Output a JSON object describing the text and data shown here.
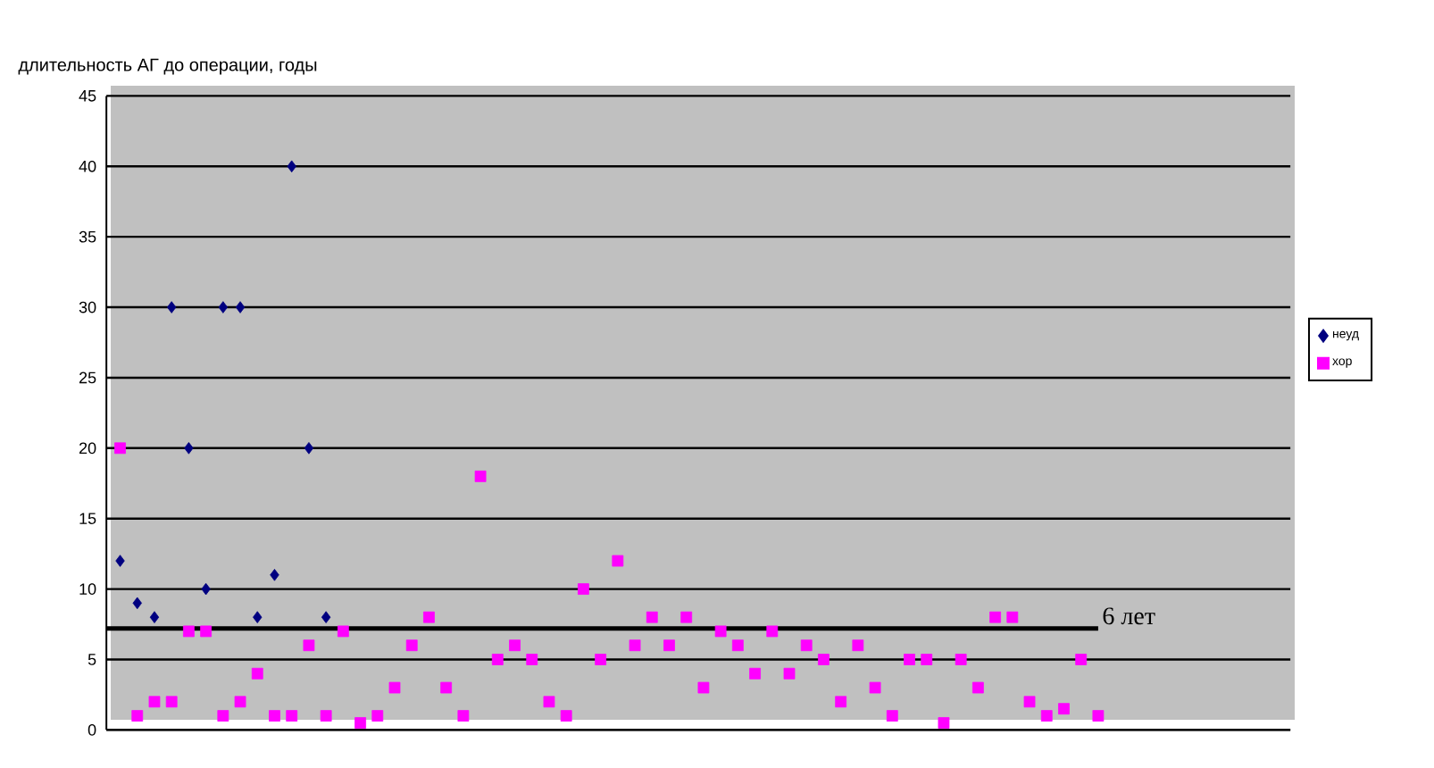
{
  "chart_data": {
    "type": "scatter",
    "ylabel": "длительность АГ до операции, годы",
    "categories": [
      null,
      null,
      null,
      null,
      null,
      null,
      null,
      null,
      null,
      null,
      null,
      null,
      null,
      null,
      null,
      null,
      null,
      null,
      null,
      null,
      null,
      null,
      null,
      null,
      null,
      null,
      null,
      null,
      null,
      null,
      null,
      null,
      null,
      null,
      null,
      null,
      null,
      null,
      null,
      null,
      null,
      null,
      null,
      null,
      null,
      null,
      null,
      null,
      null,
      null,
      null,
      null,
      null,
      null,
      null,
      null,
      null,
      null,
      null,
      null,
      null,
      null,
      null,
      null,
      null,
      null,
      null,
      null,
      null
    ],
    "series": [
      {
        "name": "неуд",
        "color": "#000080",
        "marker": "diamond",
        "values": [
          12,
          9,
          8,
          30,
          20,
          10,
          30,
          30,
          8,
          11,
          40,
          20,
          8,
          null,
          null,
          null,
          null,
          null,
          null,
          null,
          null,
          null,
          null,
          null,
          null,
          null,
          null,
          null,
          null,
          null,
          null,
          null,
          null,
          null,
          null,
          null,
          null,
          null,
          null,
          null,
          null,
          null,
          null,
          null,
          null,
          null,
          null,
          null,
          null,
          null,
          null,
          null,
          null,
          null,
          null,
          null,
          null,
          null,
          null,
          null,
          null,
          null,
          null,
          null,
          null,
          null,
          null,
          null,
          null
        ]
      },
      {
        "name": "хор",
        "color": "#ff00ff",
        "marker": "square",
        "values": [
          20,
          1,
          2,
          2,
          7,
          7,
          1,
          2,
          4,
          1,
          1,
          6,
          1,
          7,
          0.5,
          1,
          3,
          6,
          8,
          3,
          1,
          18,
          5,
          6,
          5,
          2,
          1,
          10,
          5,
          12,
          6,
          8,
          6,
          8,
          3,
          7,
          6,
          4,
          7,
          4,
          6,
          5,
          2,
          6,
          3,
          1,
          5,
          5,
          0.5,
          5,
          3,
          8,
          8,
          2,
          1,
          1.5,
          5,
          1,
          null,
          null,
          null,
          null,
          null,
          null,
          null,
          null,
          null,
          null,
          null
        ]
      }
    ],
    "ylim": [
      0,
      45
    ],
    "yticks": [
      0,
      5,
      10,
      15,
      20,
      25,
      30,
      35,
      40,
      45
    ],
    "grid": "y",
    "legend": "right",
    "ref_lines": [
      {
        "axis": "y",
        "value": 7.2,
        "label": "6 лет",
        "color": "#000000"
      }
    ]
  }
}
